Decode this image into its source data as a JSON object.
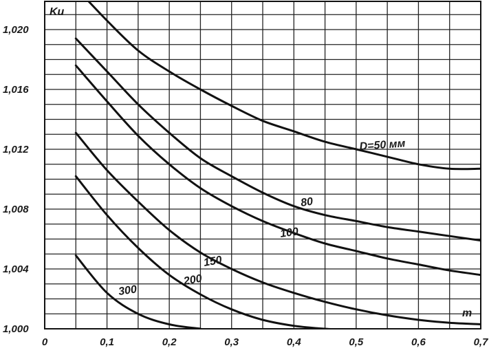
{
  "chart_data": {
    "type": "line",
    "title": "",
    "xlabel": "m",
    "ylabel": "Kи",
    "xlim": [
      0,
      0.7
    ],
    "ylim": [
      1.0,
      1.0225
    ],
    "grid": true,
    "x_ticks": [
      "0",
      "0,1",
      "0,2",
      "0,3",
      "0,4",
      "0,5",
      "0,6",
      "0,7"
    ],
    "y_ticks": [
      "1,000",
      "1,004",
      "1,008",
      "1,012",
      "1,016",
      "1,020"
    ],
    "series": [
      {
        "name": "D=50 мм",
        "x": [
          0.05,
          0.1,
          0.15,
          0.2,
          0.25,
          0.3,
          0.35,
          0.4,
          0.45,
          0.5,
          0.55,
          0.6,
          0.65,
          0.7
        ],
        "y": [
          1.0228,
          1.0206,
          1.0186,
          1.0172,
          1.016,
          1.0149,
          1.0139,
          1.0132,
          1.0125,
          1.012,
          1.0115,
          1.011,
          1.0107,
          1.0107
        ]
      },
      {
        "name": "80",
        "x": [
          0.05,
          0.1,
          0.15,
          0.2,
          0.25,
          0.3,
          0.35,
          0.4,
          0.45,
          0.5,
          0.55,
          0.6,
          0.65,
          0.7
        ],
        "y": [
          1.0194,
          1.0172,
          1.015,
          1.0131,
          1.0114,
          1.0102,
          1.0091,
          1.0082,
          1.0076,
          1.0072,
          1.0068,
          1.0065,
          1.0062,
          1.0059
        ]
      },
      {
        "name": "100",
        "x": [
          0.05,
          0.1,
          0.15,
          0.2,
          0.25,
          0.3,
          0.35,
          0.4,
          0.45,
          0.5,
          0.55,
          0.6,
          0.65,
          0.7
        ],
        "y": [
          1.0176,
          1.0152,
          1.0129,
          1.011,
          1.0094,
          1.0082,
          1.0072,
          1.0064,
          1.0057,
          1.0052,
          1.0047,
          1.0043,
          1.0039,
          1.0036
        ]
      },
      {
        "name": "150",
        "x": [
          0.05,
          0.1,
          0.15,
          0.2,
          0.25,
          0.3,
          0.35,
          0.4,
          0.45,
          0.5,
          0.55,
          0.6,
          0.65,
          0.7
        ],
        "y": [
          1.0131,
          1.0106,
          1.0085,
          1.0066,
          1.0051,
          1.004,
          1.0031,
          1.0024,
          1.0018,
          1.0013,
          1.0009,
          1.0006,
          1.0004,
          1.0003
        ]
      },
      {
        "name": "200",
        "x": [
          0.05,
          0.1,
          0.15,
          0.2,
          0.25,
          0.3,
          0.35,
          0.4,
          0.45,
          0.5
        ],
        "y": [
          1.0102,
          1.0076,
          1.0054,
          1.0036,
          1.0023,
          1.0013,
          1.0006,
          1.0002,
          1.0,
          0.9999
        ]
      },
      {
        "name": "300",
        "x": [
          0.05,
          0.1,
          0.15,
          0.2,
          0.25
        ],
        "y": [
          1.0049,
          1.0024,
          1.001,
          1.0003,
          1.0
        ]
      }
    ],
    "labels": [
      "D=50 мм",
      "80",
      "100",
      "150",
      "200",
      "300"
    ]
  }
}
